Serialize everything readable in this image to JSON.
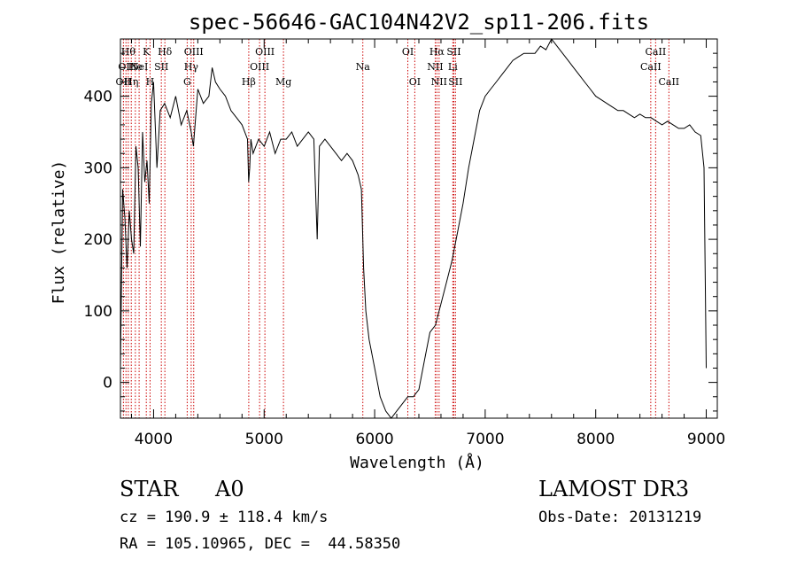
{
  "chart_data": {
    "type": "line",
    "title": "spec-56646-GAC104N42V2_sp11-206.fits",
    "xlabel": "Wavelength (Å)",
    "ylabel": "Flux (relative)",
    "xlim": [
      3700,
      9100
    ],
    "ylim": [
      -50,
      480
    ],
    "xticks": [
      4000,
      5000,
      6000,
      7000,
      8000,
      9000
    ],
    "yticks": [
      0,
      100,
      200,
      300,
      400
    ],
    "grid": false,
    "line_color": "#000000",
    "marker_color": "#cc0000",
    "series": [
      {
        "name": "flux",
        "x": [
          3700,
          3720,
          3740,
          3760,
          3780,
          3800,
          3820,
          3840,
          3860,
          3880,
          3900,
          3920,
          3940,
          3960,
          3980,
          4000,
          4030,
          4060,
          4100,
          4150,
          4200,
          4250,
          4300,
          4340,
          4360,
          4400,
          4450,
          4500,
          4530,
          4560,
          4600,
          4650,
          4700,
          4750,
          4800,
          4850,
          4860,
          4870,
          4880,
          4900,
          4950,
          5000,
          5050,
          5100,
          5150,
          5200,
          5250,
          5300,
          5350,
          5400,
          5450,
          5480,
          5500,
          5550,
          5600,
          5650,
          5700,
          5750,
          5800,
          5850,
          5880,
          5900,
          5920,
          5950,
          6000,
          6050,
          6100,
          6150,
          6200,
          6250,
          6300,
          6350,
          6400,
          6450,
          6500,
          6550,
          6600,
          6650,
          6700,
          6750,
          6800,
          6850,
          6900,
          6950,
          7000,
          7050,
          7100,
          7150,
          7200,
          7250,
          7300,
          7350,
          7400,
          7450,
          7500,
          7550,
          7600,
          7650,
          7700,
          7750,
          7800,
          7850,
          7900,
          7950,
          8000,
          8050,
          8100,
          8150,
          8200,
          8250,
          8300,
          8350,
          8400,
          8450,
          8500,
          8550,
          8600,
          8650,
          8700,
          8750,
          8800,
          8850,
          8900,
          8950,
          8980,
          9000
        ],
        "y": [
          20,
          270,
          230,
          160,
          240,
          200,
          180,
          330,
          300,
          190,
          350,
          280,
          310,
          250,
          390,
          420,
          300,
          380,
          390,
          370,
          400,
          360,
          380,
          350,
          330,
          410,
          390,
          400,
          440,
          420,
          410,
          400,
          380,
          370,
          360,
          340,
          280,
          300,
          340,
          320,
          340,
          330,
          350,
          320,
          340,
          340,
          350,
          330,
          340,
          350,
          340,
          200,
          330,
          340,
          330,
          320,
          310,
          320,
          310,
          290,
          270,
          160,
          100,
          60,
          20,
          -20,
          -40,
          -50,
          -40,
          -30,
          -20,
          -20,
          -10,
          30,
          70,
          80,
          110,
          140,
          170,
          210,
          250,
          300,
          340,
          380,
          400,
          410,
          420,
          430,
          440,
          450,
          455,
          460,
          460,
          460,
          470,
          465,
          480,
          470,
          460,
          450,
          440,
          430,
          420,
          410,
          400,
          395,
          390,
          385,
          380,
          380,
          375,
          370,
          375,
          370,
          370,
          365,
          360,
          365,
          360,
          355,
          355,
          360,
          350,
          345,
          300,
          20
        ]
      }
    ],
    "lines": [
      {
        "wl": 3727,
        "label": "OII",
        "row": 3
      },
      {
        "wl": 3750,
        "label": "OII",
        "row": 2
      },
      {
        "wl": 3771,
        "label": "Hθ",
        "row": 1
      },
      {
        "wl": 3798,
        "label": "Hη",
        "row": 3
      },
      {
        "wl": 3835,
        "label": "He",
        "row": 2
      },
      {
        "wl": 3869,
        "label": "NeI",
        "row": 2
      },
      {
        "wl": 3934,
        "label": "K",
        "row": 1
      },
      {
        "wl": 3968,
        "label": "H",
        "row": 3
      },
      {
        "wl": 4070,
        "label": "SII",
        "row": 2
      },
      {
        "wl": 4102,
        "label": "Hδ",
        "row": 1
      },
      {
        "wl": 4304,
        "label": "G",
        "row": 3
      },
      {
        "wl": 4340,
        "label": "Hγ",
        "row": 2
      },
      {
        "wl": 4363,
        "label": "OIII",
        "row": 1
      },
      {
        "wl": 4861,
        "label": "Hβ",
        "row": 3
      },
      {
        "wl": 4959,
        "label": "OIII",
        "row": 2
      },
      {
        "wl": 5007,
        "label": "OIII",
        "row": 1
      },
      {
        "wl": 5175,
        "label": "Mg",
        "row": 3
      },
      {
        "wl": 5893,
        "label": "Na",
        "row": 2
      },
      {
        "wl": 6300,
        "label": "OI",
        "row": 1
      },
      {
        "wl": 6363,
        "label": "OI",
        "row": 3
      },
      {
        "wl": 6548,
        "label": "NII",
        "row": 2
      },
      {
        "wl": 6563,
        "label": "Hα",
        "row": 1
      },
      {
        "wl": 6583,
        "label": "NII",
        "row": 3
      },
      {
        "wl": 6707,
        "label": "Li",
        "row": 2
      },
      {
        "wl": 6716,
        "label": "SII",
        "row": 1
      },
      {
        "wl": 6731,
        "label": "SII",
        "row": 3
      },
      {
        "wl": 8498,
        "label": "CaII",
        "row": 2
      },
      {
        "wl": 8542,
        "label": "CaII",
        "row": 1
      },
      {
        "wl": 8662,
        "label": "CaII",
        "row": 3
      }
    ]
  },
  "info": {
    "object_class": "STAR",
    "subclass": "A0",
    "survey": "LAMOST DR3",
    "cz": "cz = 190.9 ± 118.4 km/s",
    "obs_date": "Obs-Date: 20131219",
    "coords": "RA = 105.10965, DEC =  44.58350"
  }
}
